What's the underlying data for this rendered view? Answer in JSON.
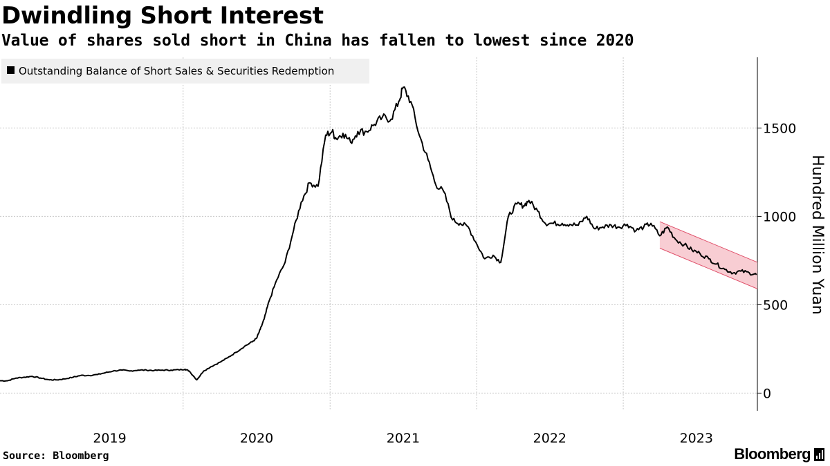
{
  "title": "Dwindling Short Interest",
  "subtitle": "Value of shares sold short in China has fallen to lowest since 2020",
  "source": "Source: Bloomberg",
  "brand": "Bloomberg",
  "chart_data": {
    "type": "line",
    "title": "Dwindling Short Interest",
    "subtitle": "Value of shares sold short in China has fallen to lowest since 2020",
    "ylabel": "Hundred Million Yuan",
    "xlabel": "",
    "ylim": [
      -100,
      1900
    ],
    "xlim": [
      "2018-10-01",
      "2023-11-30"
    ],
    "yticks": [
      0,
      500,
      1000,
      1500
    ],
    "ytick_labels": [
      "0",
      "500",
      "1000",
      "1500"
    ],
    "xtick_labels": [
      "2019",
      "2020",
      "2021",
      "2022",
      "2023"
    ],
    "grid": true,
    "legend_position": "top-left",
    "y_axis_side": "right",
    "series_color": "#000000",
    "series": [
      {
        "name": "Outstanding Balance of Short Sales & Securities Redemption",
        "x": [
          "2018-10-01",
          "2018-10-20",
          "2018-11-10",
          "2018-12-01",
          "2018-12-20",
          "2019-01-10",
          "2019-02-01",
          "2019-02-20",
          "2019-03-10",
          "2019-04-01",
          "2019-04-20",
          "2019-05-10",
          "2019-06-01",
          "2019-06-20",
          "2019-07-10",
          "2019-08-01",
          "2019-08-20",
          "2019-09-10",
          "2019-10-01",
          "2019-10-20",
          "2019-11-10",
          "2019-12-01",
          "2019-12-20",
          "2020-01-05",
          "2020-01-15",
          "2020-02-03",
          "2020-02-20",
          "2020-03-10",
          "2020-04-01",
          "2020-04-20",
          "2020-05-10",
          "2020-06-01",
          "2020-06-20",
          "2020-07-01",
          "2020-07-10",
          "2020-07-20",
          "2020-08-01",
          "2020-08-20",
          "2020-09-10",
          "2020-10-01",
          "2020-10-20",
          "2020-11-10",
          "2020-12-01",
          "2020-12-20",
          "2021-01-05",
          "2021-01-15",
          "2021-02-01",
          "2021-02-20",
          "2021-03-10",
          "2021-04-01",
          "2021-04-20",
          "2021-05-10",
          "2021-06-01",
          "2021-06-20",
          "2021-07-01",
          "2021-07-20",
          "2021-08-10",
          "2021-09-01",
          "2021-09-20",
          "2021-10-10",
          "2021-11-01",
          "2021-11-20",
          "2021-12-10",
          "2022-01-01",
          "2022-01-20",
          "2022-02-10",
          "2022-03-01",
          "2022-03-20",
          "2022-04-10",
          "2022-04-27",
          "2022-05-10",
          "2022-06-01",
          "2022-06-20",
          "2022-07-10",
          "2022-08-01",
          "2022-08-20",
          "2022-09-10",
          "2022-10-01",
          "2022-10-20",
          "2022-11-10",
          "2022-12-01",
          "2022-12-20",
          "2023-01-10",
          "2023-02-01",
          "2023-02-20",
          "2023-03-10",
          "2023-04-01",
          "2023-04-20",
          "2023-05-10",
          "2023-06-01",
          "2023-06-20",
          "2023-07-10",
          "2023-08-01",
          "2023-08-20",
          "2023-09-10",
          "2023-10-01",
          "2023-10-20",
          "2023-11-10",
          "2023-11-28"
        ],
        "y": [
          70,
          70,
          85,
          90,
          95,
          85,
          75,
          75,
          80,
          90,
          100,
          100,
          105,
          115,
          125,
          130,
          125,
          130,
          130,
          128,
          130,
          130,
          132,
          135,
          125,
          75,
          125,
          150,
          175,
          200,
          230,
          265,
          290,
          310,
          360,
          420,
          520,
          640,
          740,
          920,
          1080,
          1190,
          1170,
          1460,
          1480,
          1440,
          1470,
          1420,
          1480,
          1480,
          1520,
          1560,
          1550,
          1650,
          1730,
          1650,
          1460,
          1320,
          1180,
          1140,
          980,
          960,
          940,
          840,
          760,
          780,
          740,
          1000,
          1070,
          1060,
          1090,
          1030,
          960,
          960,
          960,
          955,
          950,
          1000,
          930,
          940,
          950,
          940,
          955,
          920,
          940,
          960,
          890,
          940,
          870,
          840,
          810,
          790,
          760,
          730,
          700,
          680,
          690,
          680,
          670
        ]
      }
    ],
    "trend_channel": {
      "color": "#f7c8ce",
      "edge_color": "#e0506a",
      "x": [
        "2023-04-01",
        "2023-11-30"
      ],
      "upper": [
        970,
        740
      ],
      "lower": [
        820,
        590
      ]
    }
  }
}
